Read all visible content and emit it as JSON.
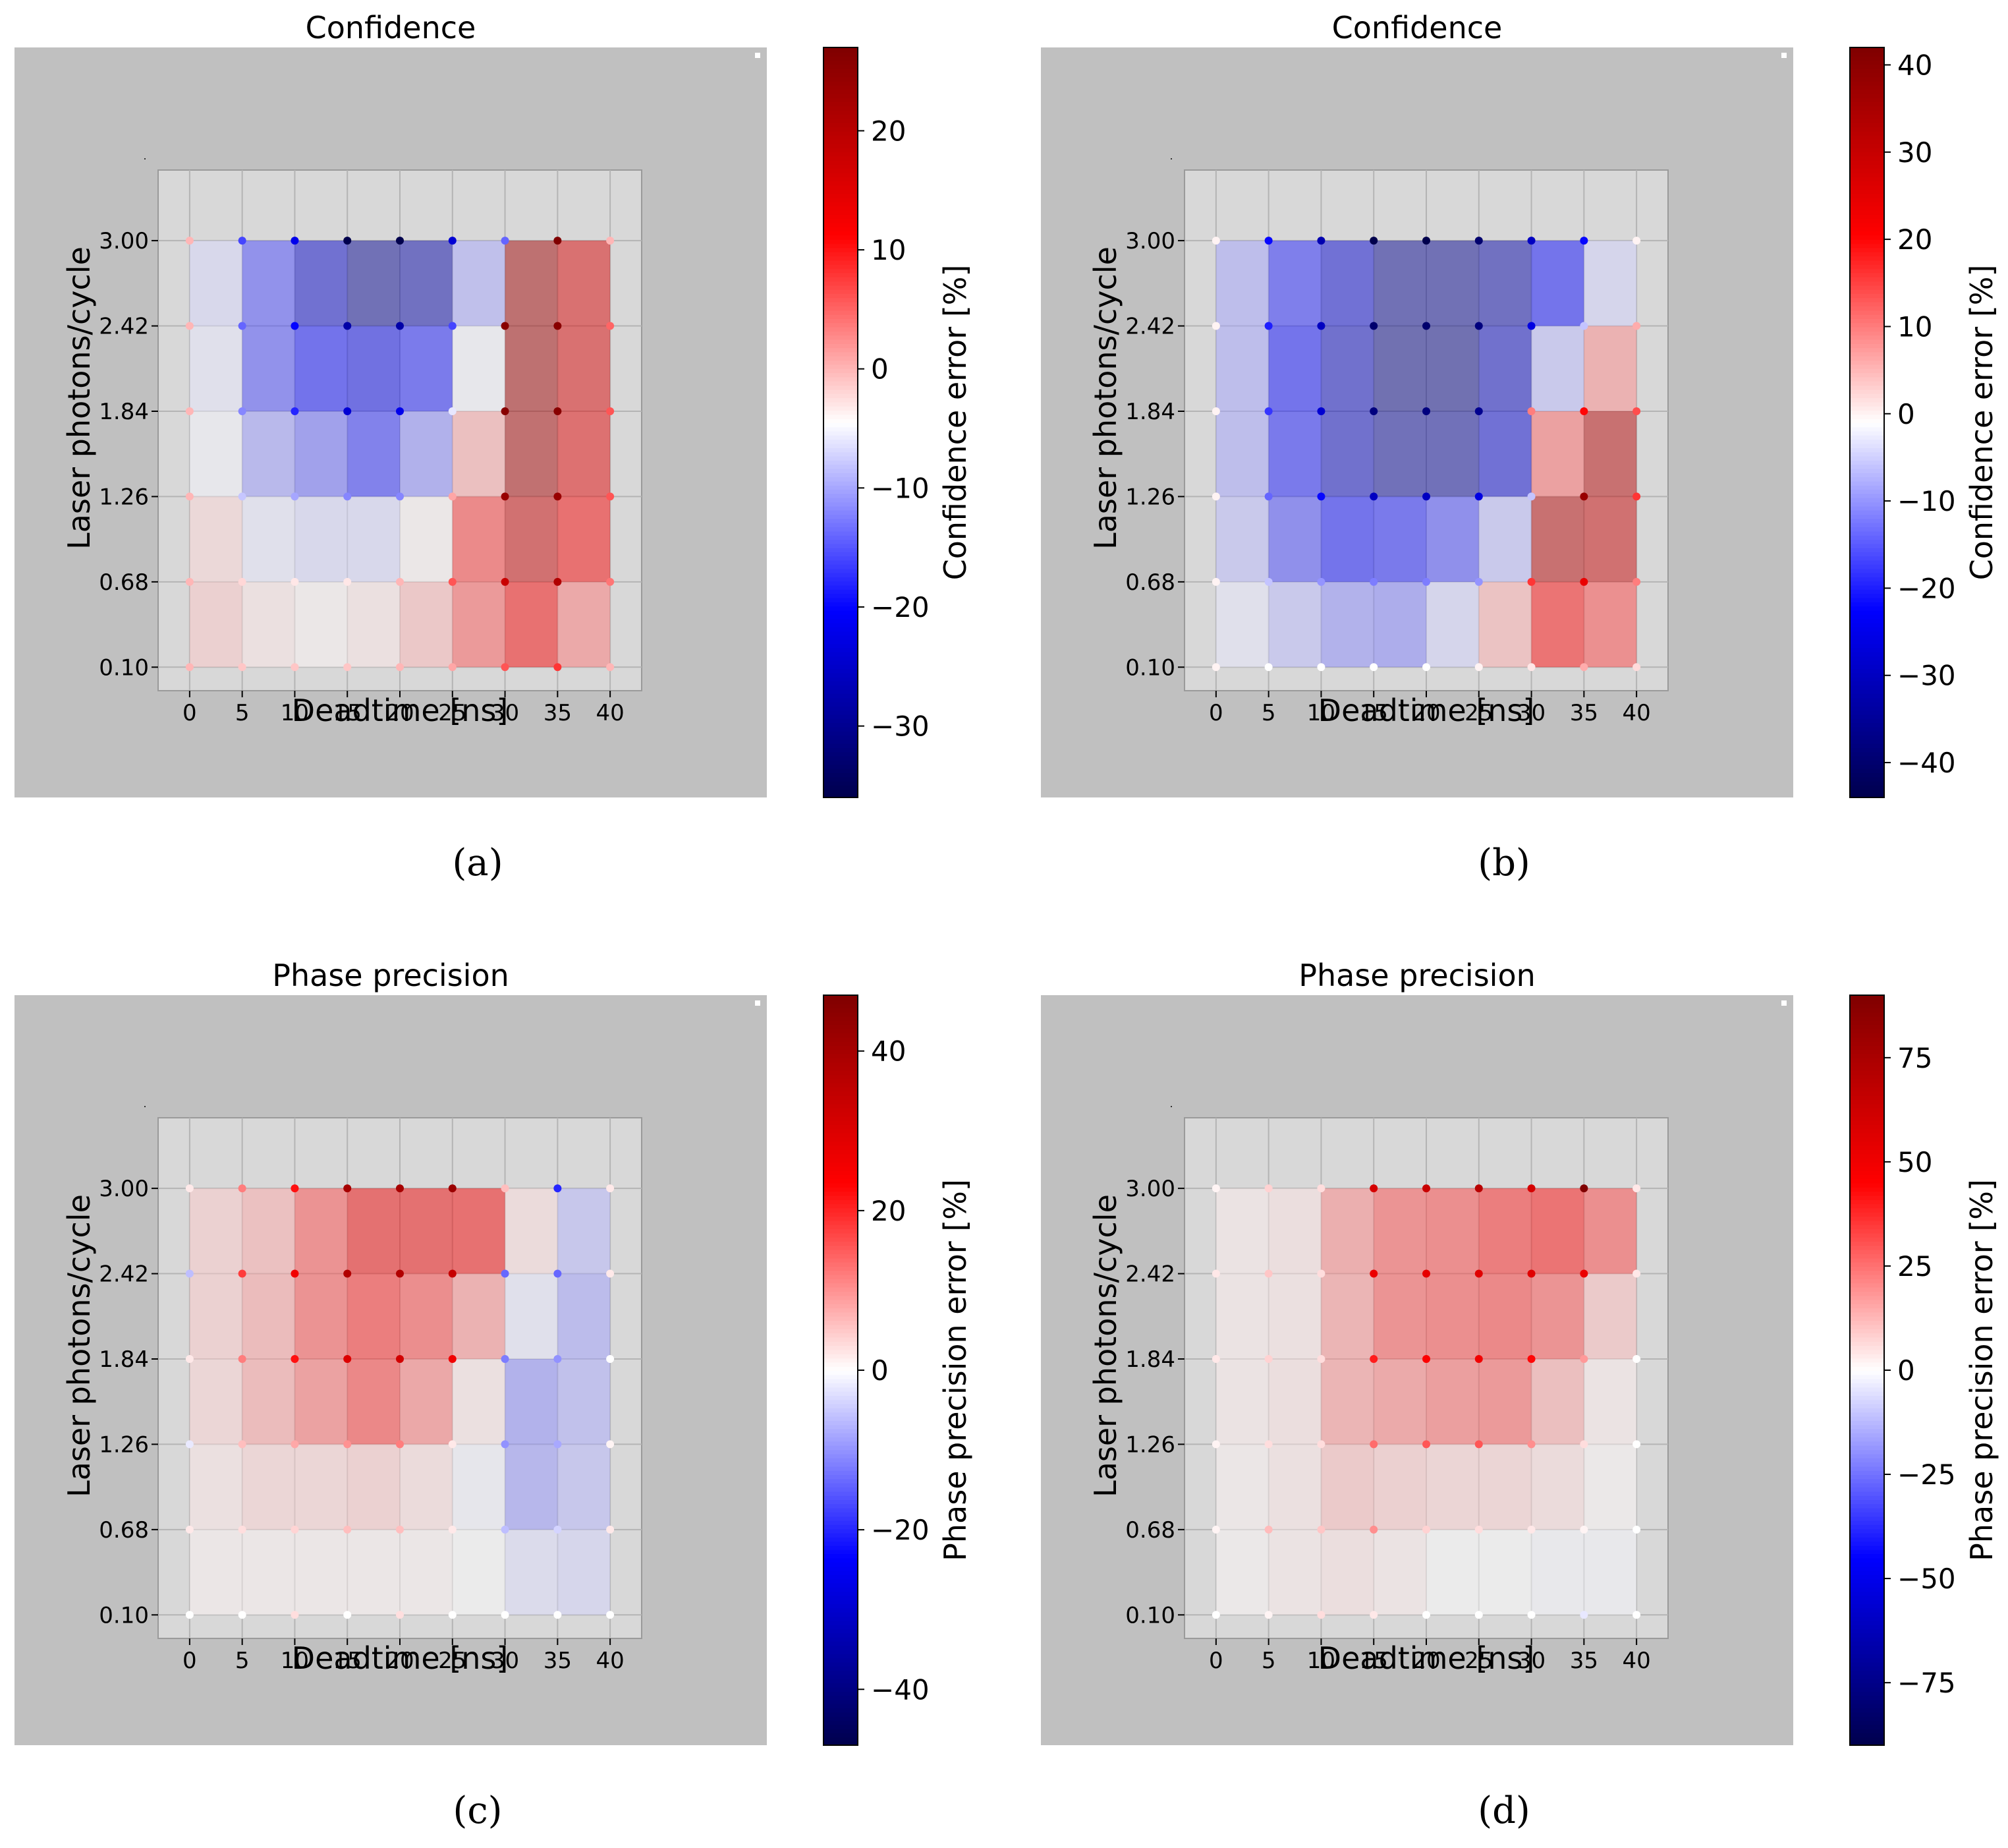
{
  "panels": [
    {
      "id": "a",
      "caption": "(a)",
      "chart_data": {
        "type": "heatmap",
        "title": "Confidence",
        "xlabel": "Deadtime [ns]",
        "ylabel": "Laser photons/cycle",
        "colorbar_label": "Confidence error [%]",
        "x": [
          "0",
          "5",
          "10",
          "15",
          "20",
          "25",
          "30",
          "35",
          "40"
        ],
        "y": [
          "0.10",
          "0.68",
          "1.26",
          "1.84",
          "2.42",
          "3.00"
        ],
        "xlim": [
          -3,
          43
        ],
        "ylim": [
          -0.06,
          3.48
        ],
        "cmap": "seismic",
        "vmin": -36,
        "vmax": 27,
        "colorbar_ticks": [
          20,
          10,
          0,
          -10,
          -20,
          -30
        ],
        "colorbar_tick_labels": [
          "20",
          "10",
          "0",
          "−10",
          "−20",
          "−30"
        ],
        "values": [
          [
            -1,
            -3,
            -4,
            -3,
            0,
            6,
            12,
            4
          ],
          [
            -2,
            -6,
            -7,
            -7,
            -4,
            8,
            18,
            12
          ],
          [
            -5,
            -11,
            -14,
            -18,
            -12,
            1,
            22,
            15
          ],
          [
            -6,
            -16,
            -20,
            -22,
            -19,
            -5,
            23,
            16
          ],
          [
            -7,
            -16,
            -25,
            -30,
            -28,
            -10,
            23,
            16
          ]
        ],
        "point_values": [
          [
            0,
            -1,
            -1,
            -1,
            0,
            1,
            6,
            8,
            0
          ],
          [
            0,
            -2,
            -3,
            -3,
            0,
            6,
            18,
            21,
            4
          ],
          [
            0,
            -8,
            -10,
            -12,
            -12,
            1,
            24,
            24,
            6
          ],
          [
            0,
            -12,
            -18,
            -24,
            -22,
            -6,
            26,
            26,
            6
          ],
          [
            0,
            -14,
            -20,
            -28,
            -28,
            -16,
            26,
            26,
            5
          ],
          [
            0,
            -16,
            -22,
            -36,
            -36,
            -24,
            -14,
            27,
            0
          ]
        ]
      }
    },
    {
      "id": "b",
      "caption": "(b)",
      "chart_data": {
        "type": "heatmap",
        "title": "Confidence",
        "xlabel": "Deadtime [ns]",
        "ylabel": "Laser photons/cycle",
        "colorbar_label": "Confidence error [%]",
        "x": [
          "0",
          "5",
          "10",
          "15",
          "20",
          "25",
          "30",
          "35",
          "40"
        ],
        "y": [
          "0.10",
          "0.68",
          "1.26",
          "1.84",
          "2.42",
          "3.00"
        ],
        "xlim": [
          -3,
          43
        ],
        "ylim": [
          -0.06,
          3.48
        ],
        "cmap": "seismic",
        "vmin": -44,
        "vmax": 42,
        "colorbar_ticks": [
          40,
          30,
          20,
          10,
          0,
          -10,
          -20,
          -30,
          -40
        ],
        "colorbar_tick_labels": [
          "40",
          "30",
          "20",
          "10",
          "0",
          "−10",
          "−20",
          "−30",
          "−40"
        ],
        "values": [
          [
            -3,
            -7,
            -11,
            -12,
            -5,
            6,
            20,
            15
          ],
          [
            -7,
            -17,
            -22,
            -21,
            -17,
            -7,
            33,
            30
          ],
          [
            -9,
            -21,
            -30,
            -35,
            -35,
            -28,
            12,
            33
          ],
          [
            -9,
            -22,
            -30,
            -37,
            -37,
            -30,
            -7,
            9
          ],
          [
            -9,
            -20,
            -28,
            -36,
            -36,
            -33,
            -22,
            -5
          ]
        ],
        "point_values": [
          [
            0,
            -1,
            -1,
            -1,
            -1,
            0,
            1,
            6,
            2
          ],
          [
            0,
            -6,
            -10,
            -12,
            -12,
            -10,
            16,
            24,
            10
          ],
          [
            0,
            -14,
            -22,
            -30,
            -30,
            -26,
            -6,
            38,
            16
          ],
          [
            0,
            -18,
            -28,
            -38,
            -38,
            -36,
            10,
            20,
            14
          ],
          [
            0,
            -20,
            -30,
            -40,
            -40,
            -38,
            -26,
            -6,
            6
          ],
          [
            0,
            -22,
            -32,
            -44,
            -44,
            -40,
            -30,
            -22,
            0
          ]
        ]
      }
    },
    {
      "id": "c",
      "caption": "(c)",
      "chart_data": {
        "type": "heatmap",
        "title": "Phase precision",
        "xlabel": "Deadtime [ns]",
        "ylabel": "Laser photons/cycle",
        "colorbar_label": "Phase precision error [%]",
        "x": [
          "0",
          "5",
          "10",
          "15",
          "20",
          "25",
          "30",
          "35",
          "40"
        ],
        "y": [
          "0.10",
          "0.68",
          "1.26",
          "1.84",
          "2.42",
          "3.00"
        ],
        "xlim": [
          -3,
          43
        ],
        "ylim": [
          -0.06,
          3.48
        ],
        "cmap": "seismic",
        "vmin": -47,
        "vmax": 47,
        "colorbar_ticks": [
          40,
          20,
          0,
          -20,
          -40
        ],
        "colorbar_tick_labels": [
          "40",
          "20",
          "0",
          "−20",
          "−40"
        ],
        "values": [
          [
            1,
            1,
            1,
            1,
            1,
            0,
            -3,
            -4
          ],
          [
            2,
            4,
            4,
            5,
            3,
            -1,
            -10,
            -7
          ],
          [
            4,
            9,
            14,
            19,
            13,
            2,
            -11,
            -8
          ],
          [
            5,
            9,
            17,
            21,
            18,
            11,
            -2,
            -9
          ],
          [
            5,
            8,
            17,
            26,
            26,
            25,
            3,
            -7
          ]
        ],
        "point_values": [
          [
            0,
            0,
            3,
            0,
            3,
            0,
            0,
            0,
            0
          ],
          [
            2,
            3,
            4,
            6,
            6,
            2,
            -6,
            -4,
            2
          ],
          [
            -2,
            6,
            8,
            10,
            12,
            2,
            -10,
            -8,
            1
          ],
          [
            2,
            12,
            22,
            30,
            32,
            26,
            -12,
            -10,
            0
          ],
          [
            -6,
            18,
            26,
            38,
            38,
            34,
            -14,
            -14,
            2
          ],
          [
            2,
            12,
            22,
            40,
            40,
            42,
            6,
            -20,
            2
          ]
        ]
      }
    },
    {
      "id": "d",
      "caption": "(d)",
      "chart_data": {
        "type": "heatmap",
        "title": "Phase precision",
        "xlabel": "Deadtime [ns]",
        "ylabel": "Laser photons/cycle",
        "colorbar_label": "Phase precision error [%]",
        "x": [
          "0",
          "5",
          "10",
          "15",
          "20",
          "25",
          "30",
          "35",
          "40"
        ],
        "y": [
          "0.10",
          "0.68",
          "1.26",
          "1.84",
          "2.42",
          "3.00"
        ],
        "xlim": [
          -3,
          43
        ],
        "ylim": [
          -0.06,
          3.48
        ],
        "cmap": "seismic",
        "vmin": -90,
        "vmax": 90,
        "colorbar_ticks": [
          75,
          50,
          25,
          0,
          -25,
          -50,
          -75
        ],
        "colorbar_tick_labels": [
          "75",
          "50",
          "25",
          "0",
          "−25",
          "−50",
          "−75"
        ],
        "values": [
          [
            1,
            3,
            5,
            3,
            0,
            0,
            -1,
            -1
          ],
          [
            2,
            4,
            12,
            10,
            8,
            8,
            6,
            1
          ],
          [
            3,
            5,
            20,
            24,
            28,
            30,
            16,
            3
          ],
          [
            3,
            4,
            20,
            32,
            34,
            36,
            32,
            12
          ],
          [
            3,
            5,
            22,
            32,
            34,
            40,
            44,
            34
          ]
        ],
        "point_values": [
          [
            0,
            2,
            6,
            4,
            0,
            0,
            0,
            -4,
            0
          ],
          [
            2,
            12,
            10,
            20,
            8,
            6,
            4,
            2,
            0
          ],
          [
            2,
            6,
            6,
            26,
            30,
            30,
            20,
            6,
            0
          ],
          [
            4,
            8,
            6,
            40,
            46,
            50,
            44,
            18,
            0
          ],
          [
            4,
            10,
            6,
            52,
            54,
            56,
            56,
            52,
            4
          ],
          [
            2,
            8,
            6,
            60,
            64,
            70,
            60,
            90,
            4
          ]
        ]
      }
    }
  ]
}
